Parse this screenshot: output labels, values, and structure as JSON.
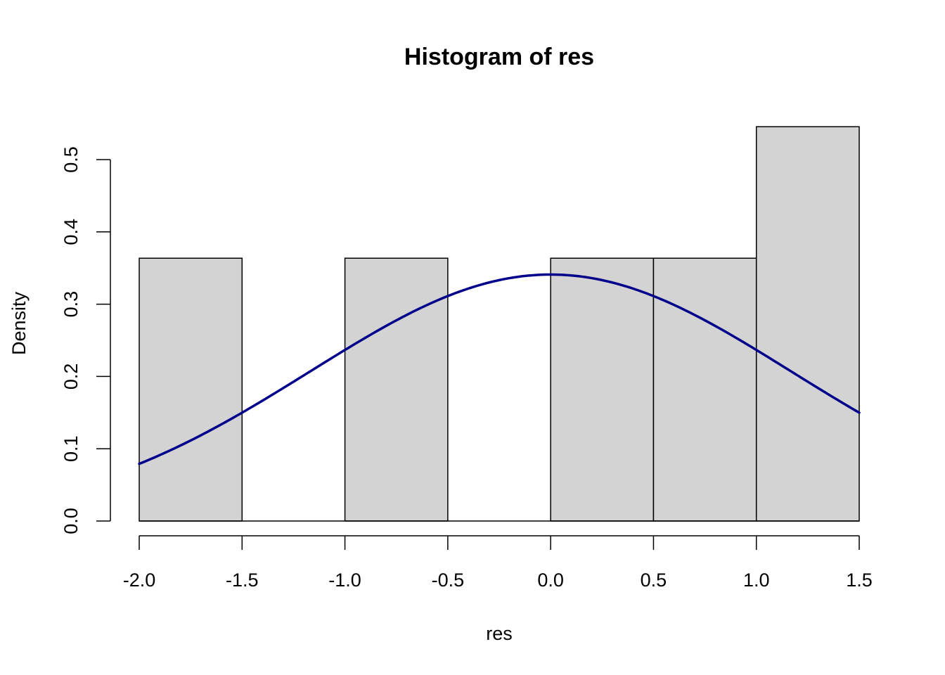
{
  "chart_data": {
    "type": "bar",
    "subtype": "histogram",
    "title": "Histogram of res",
    "xlabel": "res",
    "ylabel": "Density",
    "xlim": [
      -2.0,
      1.5
    ],
    "ylim": [
      0.0,
      0.5
    ],
    "x_ticks": [
      "-2.0",
      "-1.5",
      "-1.0",
      "-0.5",
      "0.0",
      "0.5",
      "1.0",
      "1.5"
    ],
    "y_ticks": [
      "0.0",
      "0.1",
      "0.2",
      "0.3",
      "0.4",
      "0.5"
    ],
    "bins": [
      {
        "start": -2.0,
        "end": -1.5,
        "density": 0.3636
      },
      {
        "start": -1.5,
        "end": -1.0,
        "density": 0.0
      },
      {
        "start": -1.0,
        "end": -0.5,
        "density": 0.3636
      },
      {
        "start": -0.5,
        "end": 0.0,
        "density": 0.0
      },
      {
        "start": 0.0,
        "end": 0.5,
        "density": 0.3636
      },
      {
        "start": 0.5,
        "end": 1.0,
        "density": 0.3636
      },
      {
        "start": 1.0,
        "end": 1.5,
        "density": 0.5455
      }
    ],
    "curve": {
      "kind": "normal density",
      "mean": 0.0,
      "sd": 1.17,
      "x_range": [
        -2.0,
        1.5
      ]
    },
    "grid": false,
    "legend": "none",
    "colors": {
      "bar_fill": "#d3d3d3",
      "bar_stroke": "#000000",
      "curve": "#00008b",
      "axis": "#000000"
    }
  }
}
